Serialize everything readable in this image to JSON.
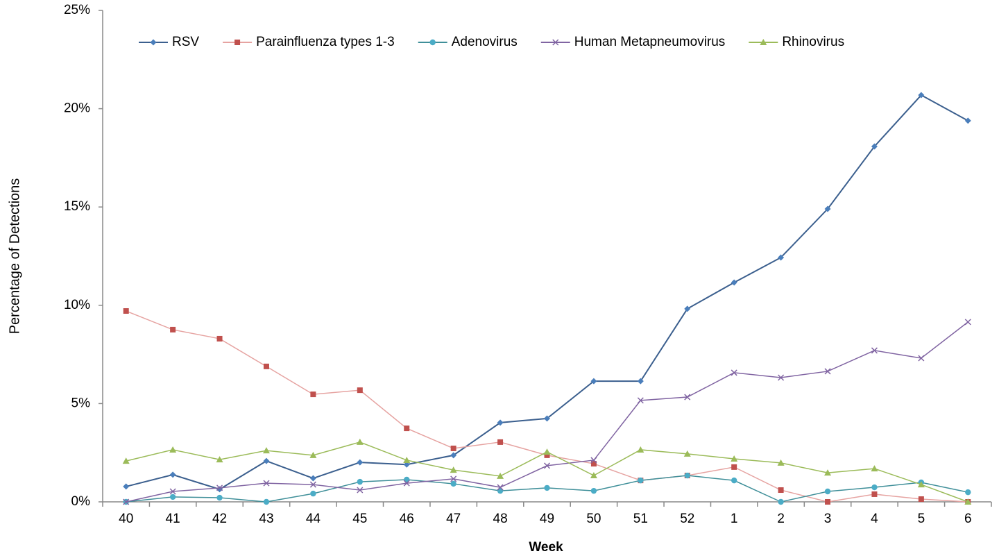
{
  "chart_data": {
    "type": "line",
    "x_label": "Week",
    "y_label": "Percentage of Detections",
    "categories": [
      "40",
      "41",
      "42",
      "43",
      "44",
      "45",
      "46",
      "47",
      "48",
      "49",
      "50",
      "51",
      "52",
      "1",
      "2",
      "3",
      "4",
      "5",
      "6"
    ],
    "ylim": [
      0,
      25
    ],
    "yticks": [
      {
        "value": 0,
        "label": "0%"
      },
      {
        "value": 5,
        "label": "5%"
      },
      {
        "value": 10,
        "label": "10%"
      },
      {
        "value": 15,
        "label": "15%"
      },
      {
        "value": 20,
        "label": "20%"
      },
      {
        "value": 25,
        "label": "25%"
      }
    ],
    "grid": false,
    "legend": "top",
    "series": [
      {
        "name": "RSV",
        "color": "#3b5f8e",
        "marker_color": "#4a7ebb",
        "marker": "diamond",
        "values": [
          0.78,
          1.38,
          0.64,
          2.08,
          1.2,
          2.01,
          1.9,
          2.37,
          4.03,
          4.24,
          6.14,
          6.14,
          9.82,
          11.16,
          12.43,
          14.9,
          18.08,
          20.69,
          19.39
        ]
      },
      {
        "name": "Parainfluenza types 1-3",
        "color": "#e6a3a1",
        "marker_color": "#c0504d",
        "marker": "square",
        "values": [
          9.71,
          8.76,
          8.3,
          6.89,
          5.47,
          5.68,
          3.74,
          2.72,
          3.04,
          2.37,
          1.94,
          1.09,
          1.34,
          1.77,
          0.6,
          0,
          0.39,
          0.14,
          0
        ]
      },
      {
        "name": "Adenovirus",
        "color": "#3f8f99",
        "marker_color": "#4bacc6",
        "marker": "circle",
        "values": [
          0,
          0.25,
          0.21,
          0,
          0.42,
          1.02,
          1.13,
          0.92,
          0.56,
          0.71,
          0.56,
          1.09,
          1.34,
          1.09,
          0,
          0.53,
          0.74,
          0.99,
          0.49
        ]
      },
      {
        "name": "Human Metapneumovirus",
        "color": "#8064a2",
        "marker_color": "#8064a2",
        "marker": "x",
        "values": [
          0,
          0.53,
          0.71,
          0.95,
          0.88,
          0.6,
          0.95,
          1.17,
          0.74,
          1.84,
          2.12,
          5.16,
          5.33,
          6.57,
          6.32,
          6.64,
          7.7,
          7.31,
          9.15
        ]
      },
      {
        "name": "Rhinovirus",
        "color": "#9bbb59",
        "marker_color": "#9bbb59",
        "marker": "triangle",
        "values": [
          2.08,
          2.65,
          2.15,
          2.61,
          2.37,
          3.04,
          2.12,
          1.62,
          1.31,
          2.54,
          1.34,
          2.65,
          2.44,
          2.19,
          1.98,
          1.48,
          1.69,
          0.88,
          0
        ]
      }
    ]
  }
}
